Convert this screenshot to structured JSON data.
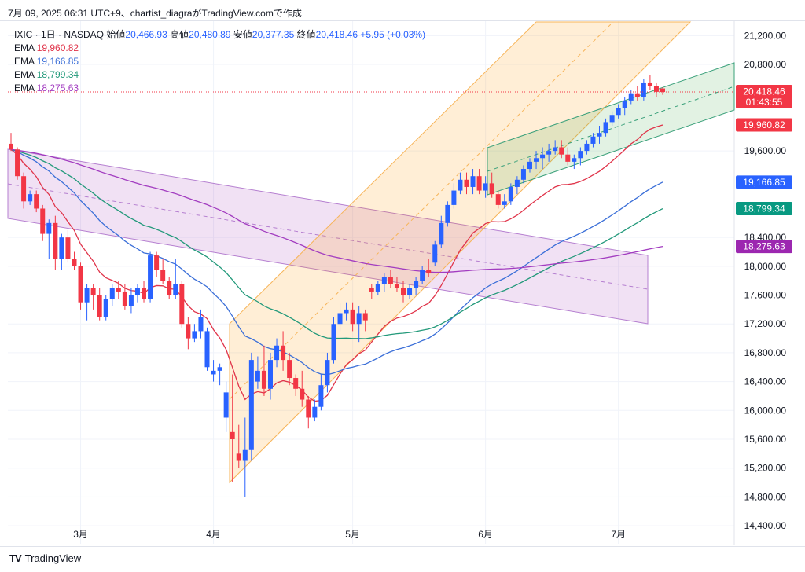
{
  "caption": "7月 09, 2025 06:31 UTC+9、chartist_diagraがTradingView.comで作成",
  "brand": {
    "name": "TradingView",
    "logo": "TV"
  },
  "legend": {
    "symbol": "IXIC · 1日 · NASDAQ",
    "open_label": "始値",
    "open": "20,466.93",
    "high_label": "高値",
    "high": "20,480.89",
    "low_label": "安値",
    "low": "20,377.35",
    "close_label": "終値",
    "close": "20,418.46",
    "change": "+5.95 (+0.03%)",
    "ema": [
      {
        "label": "EMA",
        "value": "19,960.82",
        "color": "#e0344a"
      },
      {
        "label": "EMA",
        "value": "19,166.85",
        "color": "#3b6fd8"
      },
      {
        "label": "EMA",
        "value": "18,799.34",
        "color": "#22997a"
      },
      {
        "label": "EMA",
        "value": "18,275.63",
        "color": "#a23cc0"
      }
    ]
  },
  "price_badges": [
    {
      "text": "20,418.46",
      "sub": "01:43:55",
      "color": "#f23645",
      "value": 20418.46
    },
    {
      "text": "19,960.82",
      "color": "#f23645",
      "value": 19960.82
    },
    {
      "text": "19,166.85",
      "color": "#2962ff",
      "value": 19166.85
    },
    {
      "text": "18,799.34",
      "color": "#089981",
      "value": 18799.34
    },
    {
      "text": "18,275.63",
      "color": "#9c27b0",
      "value": 18275.63
    }
  ],
  "chart_data": {
    "type": "candlestick",
    "x_tick_labels": [
      "3月",
      "4月",
      "5月",
      "6月",
      "7月"
    ],
    "y_ticks": [
      14400,
      14800,
      15200,
      15600,
      16000,
      16400,
      16800,
      17200,
      17600,
      18000,
      18400,
      19600,
      20800,
      21200
    ],
    "y_tick_labels": [
      "14,400.00",
      "14,800.00",
      "15,200.00",
      "15,600.00",
      "16,000.00",
      "16,400.00",
      "16,800.00",
      "17,200.00",
      "17,600.00",
      "18,000.00",
      "18,400.00",
      "19,600.00",
      "20,800.00",
      "21,200.00"
    ],
    "ylim": [
      14150,
      21400
    ],
    "up_color": "#2962ff",
    "down_color": "#f23645",
    "candles": [
      [
        19700,
        19850,
        19600,
        19620
      ],
      [
        19620,
        19650,
        19200,
        19250
      ],
      [
        19250,
        19300,
        18800,
        18900
      ],
      [
        18900,
        19050,
        18850,
        19000
      ],
      [
        19000,
        19050,
        18750,
        18800
      ],
      [
        18800,
        18850,
        18350,
        18450
      ],
      [
        18450,
        18650,
        18100,
        18600
      ],
      [
        18600,
        18700,
        17950,
        18100
      ],
      [
        18100,
        18450,
        17950,
        18400
      ],
      [
        18400,
        18500,
        18050,
        18100
      ],
      [
        18100,
        18200,
        17950,
        18000
      ],
      [
        18000,
        18050,
        17400,
        17500
      ],
      [
        17500,
        17750,
        17250,
        17700
      ],
      [
        17700,
        17750,
        17400,
        17600
      ],
      [
        17600,
        17700,
        17250,
        17300
      ],
      [
        17300,
        17600,
        17250,
        17550
      ],
      [
        17550,
        17750,
        17450,
        17700
      ],
      [
        17700,
        17800,
        17550,
        17650
      ],
      [
        17650,
        17750,
        17400,
        17450
      ],
      [
        17450,
        17700,
        17350,
        17600
      ],
      [
        17600,
        17750,
        17500,
        17700
      ],
      [
        17700,
        17800,
        17500,
        17550
      ],
      [
        17550,
        18200,
        17500,
        18150
      ],
      [
        18150,
        18200,
        17850,
        17950
      ],
      [
        17950,
        18100,
        17750,
        17800
      ],
      [
        17800,
        17850,
        17550,
        17600
      ],
      [
        17600,
        18100,
        17550,
        17750
      ],
      [
        17750,
        17800,
        17150,
        17200
      ],
      [
        17200,
        17300,
        16850,
        17000
      ],
      [
        17000,
        17200,
        16950,
        17100
      ],
      [
        17100,
        17400,
        17000,
        17300
      ],
      [
        16600,
        17150,
        16550,
        17100
      ],
      [
        16500,
        16700,
        16400,
        16550
      ],
      [
        16550,
        16650,
        16350,
        16600
      ],
      [
        15900,
        16400,
        15700,
        16250
      ],
      [
        15700,
        16500,
        15000,
        15600
      ],
      [
        15400,
        15800,
        15200,
        15300
      ],
      [
        15300,
        15900,
        14800,
        15450
      ],
      [
        15450,
        16800,
        15300,
        16700
      ],
      [
        16400,
        16750,
        16300,
        16550
      ],
      [
        16550,
        16900,
        16200,
        16300
      ],
      [
        16300,
        16800,
        16150,
        16700
      ],
      [
        16700,
        17000,
        16600,
        16900
      ],
      [
        16900,
        17100,
        16550,
        16700
      ],
      [
        16700,
        16800,
        16350,
        16450
      ],
      [
        16450,
        16500,
        16200,
        16300
      ],
      [
        16300,
        16550,
        16050,
        16150
      ],
      [
        16150,
        16200,
        15750,
        15900
      ],
      [
        15900,
        16150,
        15850,
        16050
      ],
      [
        16050,
        16500,
        16000,
        16350
      ],
      [
        16350,
        16800,
        16250,
        16700
      ],
      [
        16700,
        17300,
        16650,
        17200
      ],
      [
        17200,
        17500,
        17100,
        17350
      ],
      [
        17350,
        17500,
        17250,
        17400
      ],
      [
        17400,
        17500,
        17100,
        17200
      ],
      [
        17200,
        17450,
        16950,
        17350
      ],
      [
        17350,
        17400,
        17100,
        17250
      ],
      [
        17700,
        17750,
        17550,
        17650
      ],
      [
        17650,
        17800,
        17600,
        17750
      ],
      [
        17750,
        17900,
        17650,
        17850
      ],
      [
        17850,
        17950,
        17700,
        17750
      ],
      [
        17750,
        17850,
        17650,
        17700
      ],
      [
        17700,
        17800,
        17500,
        17600
      ],
      [
        17600,
        17750,
        17550,
        17700
      ],
      [
        17700,
        17850,
        17600,
        17800
      ],
      [
        17800,
        18000,
        17750,
        17950
      ],
      [
        17950,
        18100,
        17850,
        17900
      ],
      [
        18050,
        18350,
        18000,
        18300
      ],
      [
        18300,
        18700,
        18250,
        18600
      ],
      [
        18600,
        18900,
        18550,
        18850
      ],
      [
        18850,
        19150,
        18800,
        19050
      ],
      [
        19050,
        19300,
        19000,
        19200
      ],
      [
        19200,
        19300,
        19000,
        19100
      ],
      [
        19100,
        19350,
        19000,
        19250
      ],
      [
        19250,
        19350,
        19000,
        19050
      ],
      [
        19050,
        19250,
        18950,
        19150
      ],
      [
        19150,
        19300,
        18950,
        19000
      ],
      [
        19000,
        19050,
        18800,
        18850
      ],
      [
        18850,
        19000,
        18800,
        18900
      ],
      [
        18900,
        19150,
        18850,
        19100
      ],
      [
        19100,
        19250,
        19000,
        19200
      ],
      [
        19200,
        19400,
        19150,
        19350
      ],
      [
        19350,
        19500,
        19300,
        19450
      ],
      [
        19450,
        19600,
        19350,
        19500
      ],
      [
        19500,
        19650,
        19350,
        19550
      ],
      [
        19550,
        19700,
        19450,
        19600
      ],
      [
        19600,
        19750,
        19550,
        19650
      ],
      [
        19650,
        19750,
        19500,
        19550
      ],
      [
        19550,
        19650,
        19400,
        19450
      ],
      [
        19450,
        19550,
        19350,
        19500
      ],
      [
        19500,
        19650,
        19400,
        19600
      ],
      [
        19600,
        19750,
        19550,
        19700
      ],
      [
        19700,
        19850,
        19650,
        19800
      ],
      [
        19800,
        19950,
        19700,
        19850
      ],
      [
        19850,
        20050,
        19800,
        20000
      ],
      [
        20000,
        20150,
        19950,
        20100
      ],
      [
        20100,
        20250,
        20050,
        20200
      ],
      [
        20200,
        20350,
        20100,
        20300
      ],
      [
        20300,
        20450,
        20250,
        20400
      ],
      [
        20400,
        20500,
        20300,
        20350
      ],
      [
        20350,
        20600,
        20300,
        20550
      ],
      [
        20550,
        20650,
        20450,
        20500
      ],
      [
        20500,
        20550,
        20350,
        20420
      ],
      [
        20466.93,
        20480.89,
        20377.35,
        20418.46
      ]
    ],
    "ema_lines": [
      {
        "value": 19960.82,
        "color": "#e0344a"
      },
      {
        "value": 19166.85,
        "color": "#3b6fd8"
      },
      {
        "value": 18799.34,
        "color": "#22997a"
      },
      {
        "value": 18275.63,
        "color": "#a23cc0"
      }
    ]
  }
}
